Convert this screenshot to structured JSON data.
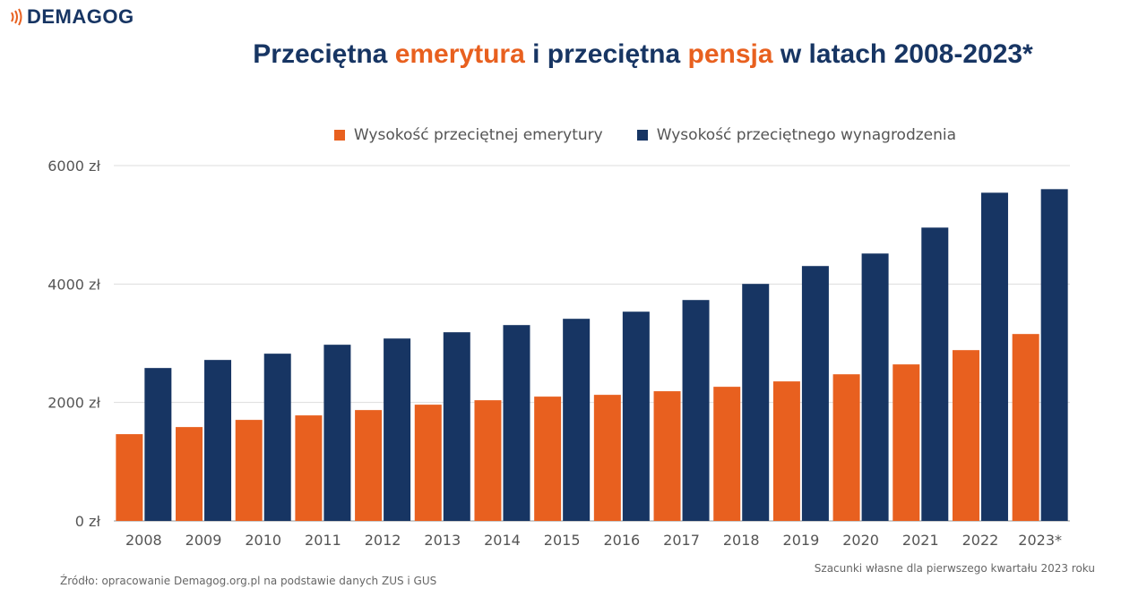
{
  "logo": {
    "text": "DEMAGOG"
  },
  "title": {
    "part1": "Przeciętna ",
    "hl1": "emerytura",
    "part2": " i przeciętna ",
    "hl2": "pensja",
    "part3": " w latach 2008-2023*"
  },
  "colors": {
    "pension": "#e8601f",
    "salary": "#173563",
    "grid": "#dddddd"
  },
  "chart_data": {
    "type": "bar",
    "categories": [
      "2008",
      "2009",
      "2010",
      "2011",
      "2012",
      "2013",
      "2014",
      "2015",
      "2016",
      "2017",
      "2018",
      "2019",
      "2020",
      "2021",
      "2022",
      "2023*"
    ],
    "series": [
      {
        "name": "Wysokość przeciętnej emerytury",
        "values": [
          1465,
          1585,
          1706,
          1782,
          1872,
          1963,
          2038,
          2099,
          2129,
          2190,
          2265,
          2356,
          2476,
          2643,
          2884,
          3156
        ]
      },
      {
        "name": "Wysokość przeciętnego wynagrodzenia",
        "values": [
          2582,
          2718,
          2824,
          2975,
          3080,
          3186,
          3307,
          3413,
          3533,
          3730,
          4002,
          4304,
          4515,
          4953,
          5542,
          5602
        ]
      }
    ],
    "ylim": [
      0,
      6000
    ],
    "yticks": [
      0,
      2000,
      4000,
      6000
    ],
    "ytick_labels": [
      "0 zł",
      "2000 zł",
      "4000 zł",
      "6000 zł"
    ],
    "grid": true,
    "legend": "top-center"
  },
  "footer": {
    "source": "Źródło: opracowanie Demagog.org.pl na podstawie danych ZUS i GUS",
    "note": "Szacunki własne dla pierwszego kwartału 2023 roku"
  }
}
